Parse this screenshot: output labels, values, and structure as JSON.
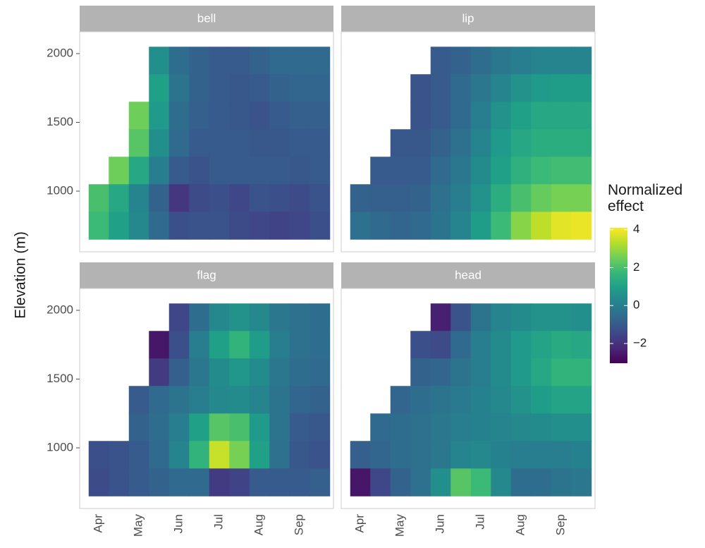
{
  "chart_data": {
    "type": "heatmap",
    "y_label": "Elevation (m)",
    "legend_title": "Normalized effect",
    "categories": [
      "Apr",
      null,
      "May",
      null,
      "Jun",
      null,
      "Jul",
      null,
      "Aug",
      null,
      "Sep",
      null
    ],
    "y": [
      1950,
      1750,
      1550,
      1350,
      1150,
      950,
      750
    ],
    "ylim": [
      559,
      2159
    ],
    "yticks": [
      1000,
      1500,
      2000
    ],
    "zlim": [
      -3.04,
      4.1
    ],
    "zticks": [
      {
        "value": -2,
        "label": "−2"
      },
      0,
      2,
      4
    ],
    "colors": [
      "#440154",
      "#482878",
      "#3e4989",
      "#31688e",
      "#26828e",
      "#1f9e89",
      "#35b779",
      "#6ece58",
      "#b5de2b",
      "#fde725"
    ],
    "panels": [
      {
        "title": "bell",
        "values": [
          [
            null,
            null,
            null,
            0.5,
            -0.5,
            -0.8,
            -1,
            -1,
            -0.8,
            -0.6,
            -0.6,
            -0.6
          ],
          [
            null,
            null,
            null,
            1.0,
            -0.3,
            -0.8,
            -1,
            -1.1,
            -1,
            -0.8,
            -0.7,
            -0.7
          ],
          [
            null,
            null,
            2.5,
            0.8,
            -0.5,
            -0.9,
            -1,
            -1.1,
            -1.2,
            -1,
            -0.9,
            -0.9
          ],
          [
            null,
            null,
            2.2,
            0.5,
            -0.6,
            -1,
            -1,
            -1,
            -1.1,
            -1.1,
            -1,
            -1
          ],
          [
            null,
            2.5,
            1.2,
            0,
            -1,
            -1.2,
            -1,
            -1,
            -1,
            -1,
            -1.1,
            -1
          ],
          [
            2.0,
            1.2,
            0.2,
            -0.8,
            -1.9,
            -1.4,
            -1.3,
            -1.5,
            -1.2,
            -1.3,
            -1.4,
            -1.2
          ],
          [
            1.8,
            1.0,
            0.3,
            -0.6,
            -1.3,
            -1.2,
            -1.2,
            -1.4,
            -1.5,
            -1.6,
            -1.5,
            -1.3
          ]
        ]
      },
      {
        "title": "lip",
        "values": [
          [
            null,
            null,
            null,
            null,
            -1,
            -0.8,
            -0.5,
            -0.2,
            0,
            0.2,
            0.2,
            0.2
          ],
          [
            null,
            null,
            null,
            -1.2,
            -1,
            -0.6,
            -0.2,
            0.2,
            0.6,
            0.8,
            0.9,
            0.9
          ],
          [
            null,
            null,
            null,
            -1.2,
            -1,
            -0.6,
            0,
            0.6,
            1,
            1.2,
            1.2,
            1.2
          ],
          [
            null,
            null,
            -1.1,
            -1.1,
            -0.8,
            -0.4,
            0.2,
            0.8,
            1.2,
            1.4,
            1.4,
            1.4
          ],
          [
            null,
            -1,
            -1,
            -1,
            -0.6,
            -0.2,
            0.4,
            1,
            1.5,
            1.8,
            1.9,
            1.9
          ],
          [
            -0.8,
            -0.9,
            -0.9,
            -0.8,
            -0.4,
            0,
            0.6,
            1.4,
            2.0,
            2.4,
            2.6,
            2.6
          ],
          [
            -0.4,
            -0.6,
            -0.7,
            -0.6,
            -0.3,
            0.2,
            0.9,
            1.8,
            2.8,
            3.4,
            3.8,
            3.9
          ]
        ]
      },
      {
        "title": "flag",
        "values": [
          [
            null,
            null,
            null,
            null,
            -1.5,
            -0.5,
            0.3,
            0.6,
            0.3,
            -0.2,
            -0.4,
            -0.5
          ],
          [
            null,
            null,
            null,
            -2.6,
            -1.3,
            0,
            1,
            1.6,
            0.9,
            0,
            -0.4,
            -0.5
          ],
          [
            null,
            null,
            null,
            -1.8,
            -0.9,
            -0.2,
            0.4,
            0.7,
            0.4,
            -0.2,
            -0.5,
            -0.6
          ],
          [
            null,
            null,
            -1,
            -0.6,
            -0.3,
            0,
            0.3,
            0.4,
            0.2,
            -0.3,
            -0.7,
            -0.8
          ],
          [
            null,
            null,
            -0.8,
            -0.5,
            0,
            1,
            2.2,
            2,
            0.8,
            -0.3,
            -1,
            -1.1
          ],
          [
            -1.3,
            -1.2,
            -1,
            -0.6,
            0.2,
            1.6,
            3.5,
            2.6,
            1.0,
            -0.4,
            -1.1,
            -1.2
          ],
          [
            -1.4,
            -1.2,
            -1,
            -0.8,
            -0.6,
            -0.6,
            -1.8,
            -1.6,
            -1,
            -1,
            -1,
            -0.9
          ]
        ]
      },
      {
        "title": "head",
        "values": [
          [
            null,
            null,
            null,
            null,
            -2.4,
            -1.2,
            -0.3,
            0.2,
            0.4,
            0.6,
            0.6,
            0.5
          ],
          [
            null,
            null,
            null,
            -1.3,
            -1.4,
            -0.6,
            0,
            0.4,
            0.8,
            1.1,
            1.3,
            1.2
          ],
          [
            null,
            null,
            null,
            -0.8,
            -0.7,
            -0.3,
            0,
            0.4,
            0.8,
            1.2,
            1.6,
            1.6
          ],
          [
            null,
            null,
            -0.7,
            -0.5,
            -0.3,
            -0.1,
            0.1,
            0.3,
            0.6,
            0.9,
            1.1,
            1.1
          ],
          [
            null,
            -0.6,
            -0.5,
            -0.4,
            -0.2,
            0,
            0.1,
            0.2,
            0.3,
            0.4,
            0.5,
            0.5
          ],
          [
            -0.9,
            -0.7,
            -0.5,
            -0.4,
            -0.2,
            0.2,
            0.3,
            0.1,
            0,
            0,
            0,
            0.1
          ],
          [
            -2.6,
            -1.5,
            -0.8,
            -0.4,
            0.5,
            2.2,
            1.8,
            0.3,
            -0.5,
            -0.5,
            -0.3,
            -0.2
          ]
        ]
      }
    ]
  }
}
